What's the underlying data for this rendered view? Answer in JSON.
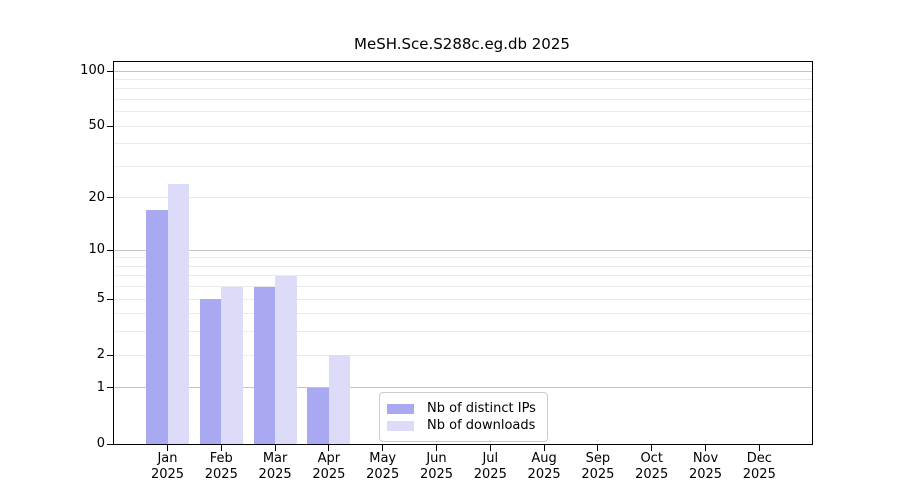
{
  "title": "MeSH.Sce.S288c.eg.db 2025",
  "colors": {
    "distinct_ips_bar": "#a9a9f1",
    "downloads_bar": "#dcdcf9",
    "grid_major": "#c4c4c4",
    "grid_minor": "#eaeaea",
    "axis": "#000000",
    "legend_border": "#cccccc"
  },
  "chart_data": {
    "type": "bar",
    "title": "MeSH.Sce.S288c.eg.db 2025",
    "y_scale": "log10(1+x)",
    "ylim": [
      0,
      100
    ],
    "y_ticks": [
      0,
      1,
      2,
      5,
      10,
      20,
      50,
      100
    ],
    "grid": {
      "major": [
        1,
        10,
        100
      ],
      "minor": [
        2,
        3,
        4,
        5,
        6,
        7,
        8,
        9,
        20,
        30,
        40,
        50,
        60,
        70,
        80,
        90
      ]
    },
    "categories": [
      {
        "month": "Jan",
        "year": "2025"
      },
      {
        "month": "Feb",
        "year": "2025"
      },
      {
        "month": "Mar",
        "year": "2025"
      },
      {
        "month": "Apr",
        "year": "2025"
      },
      {
        "month": "May",
        "year": "2025"
      },
      {
        "month": "Jun",
        "year": "2025"
      },
      {
        "month": "Jul",
        "year": "2025"
      },
      {
        "month": "Aug",
        "year": "2025"
      },
      {
        "month": "Sep",
        "year": "2025"
      },
      {
        "month": "Oct",
        "year": "2025"
      },
      {
        "month": "Nov",
        "year": "2025"
      },
      {
        "month": "Dec",
        "year": "2025"
      }
    ],
    "series": [
      {
        "name": "Nb of distinct IPs",
        "color": "#a9a9f1",
        "values": [
          17,
          5,
          6,
          1,
          0,
          0,
          0,
          0,
          0,
          0,
          0,
          0
        ]
      },
      {
        "name": "Nb of downloads",
        "color": "#dcdcf9",
        "values": [
          24,
          6,
          7,
          2,
          0,
          0,
          0,
          0,
          0,
          0,
          0,
          0
        ]
      }
    ],
    "legend_position": "bottom-center",
    "grid_on": true
  }
}
